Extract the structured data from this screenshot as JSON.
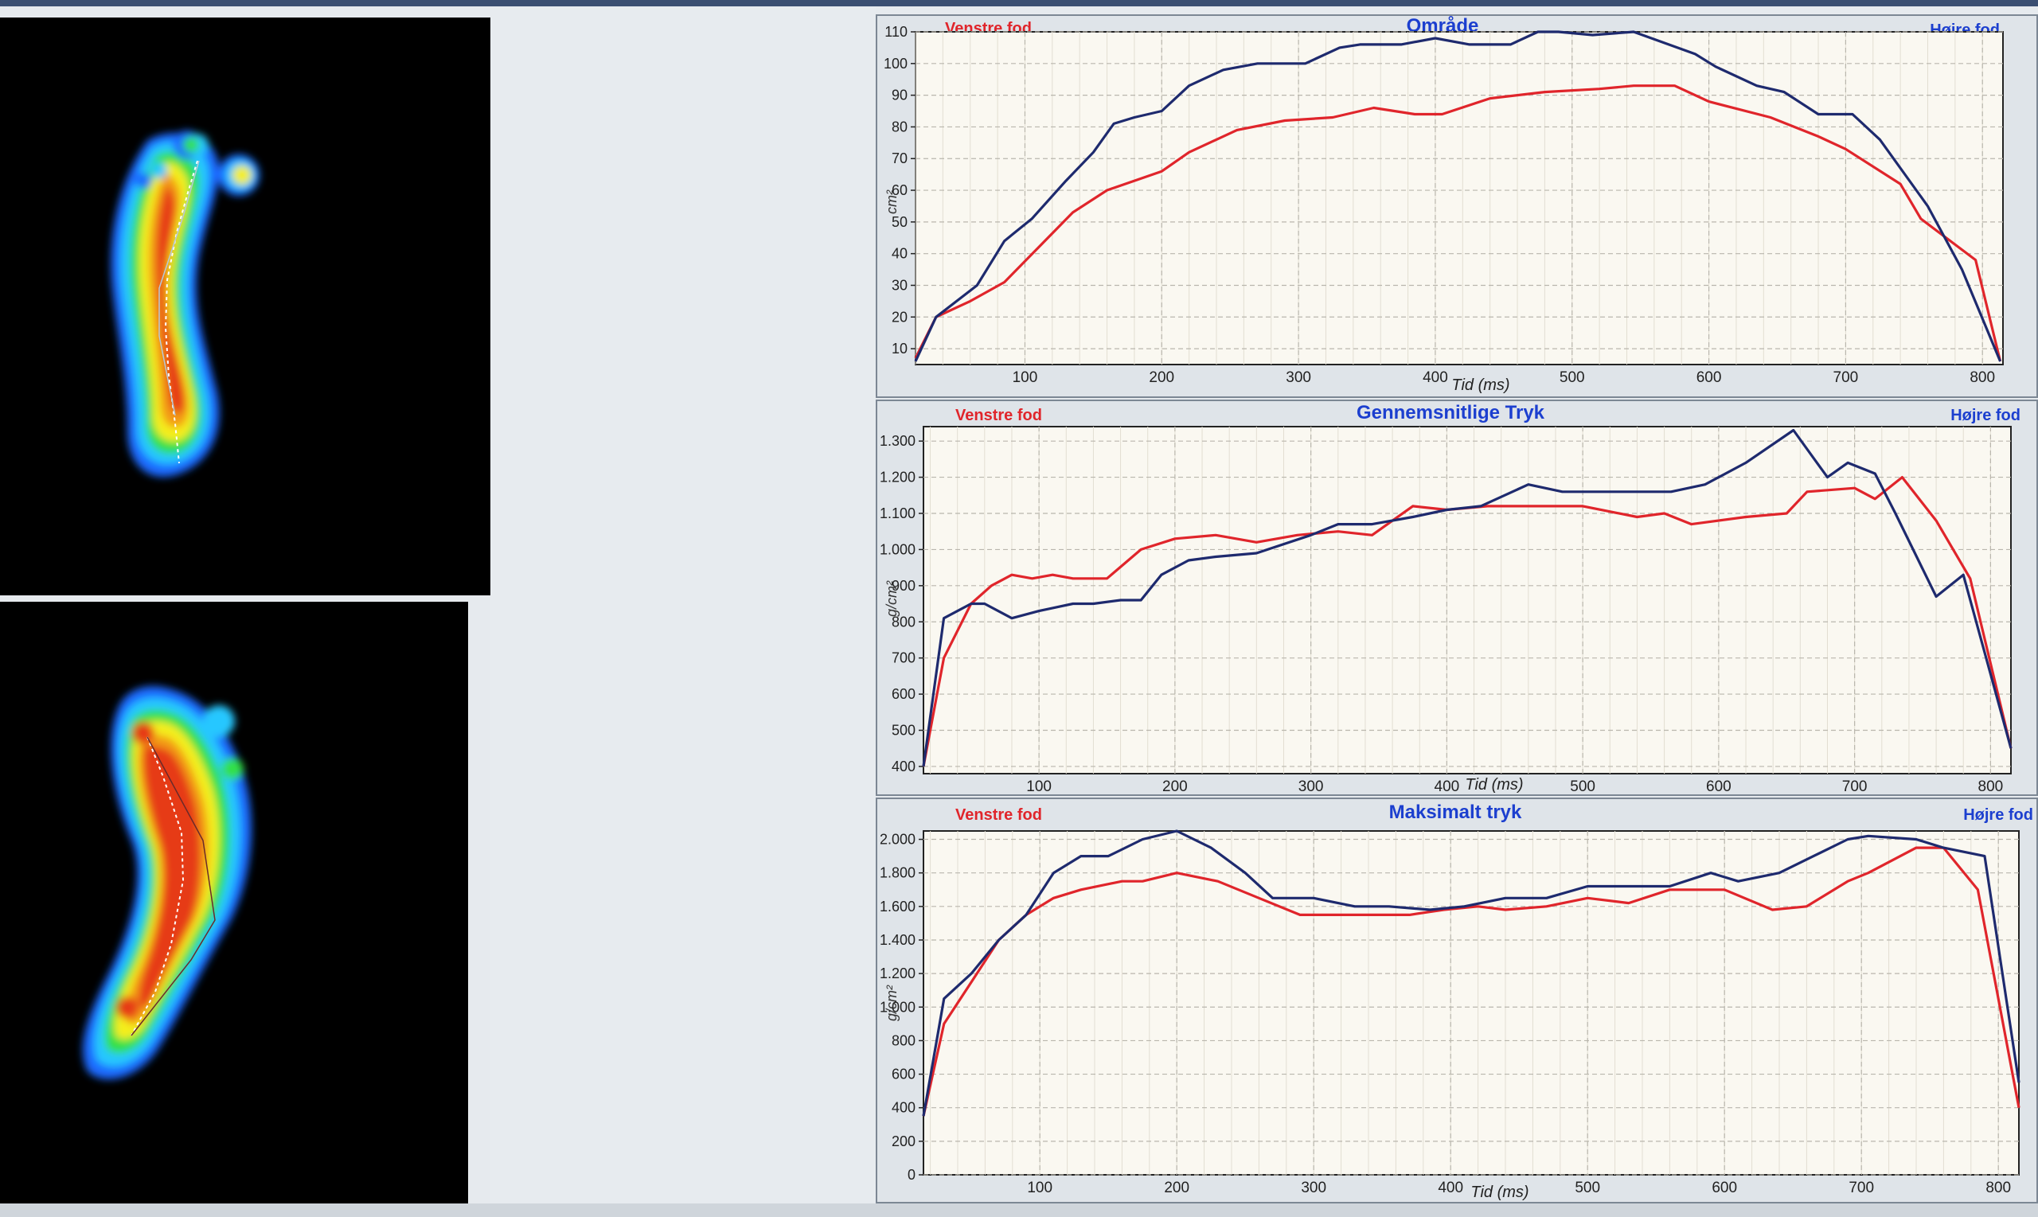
{
  "chart_data": [
    {
      "type": "line",
      "title": "Område",
      "left_label": "Venstre fod",
      "right_label": "Højre fod",
      "xlabel": "Tid (ms)",
      "ylabel": "cm²",
      "xlim": [
        20,
        815
      ],
      "ylim": [
        5,
        110
      ],
      "xticks": [
        100,
        200,
        300,
        400,
        500,
        600,
        700,
        800
      ],
      "yticks": [
        10,
        20,
        30,
        40,
        50,
        60,
        70,
        80,
        90,
        100,
        110
      ],
      "ytick_labels": [
        "10",
        "20",
        "30",
        "40",
        "50",
        "60",
        "70",
        "80",
        "90",
        "100",
        "110"
      ],
      "grid": true,
      "series": [
        {
          "name": "Venstre fod",
          "color": "#e0252b",
          "x": [
            20,
            35,
            60,
            85,
            110,
            135,
            160,
            200,
            220,
            255,
            290,
            325,
            355,
            385,
            405,
            440,
            480,
            520,
            545,
            575,
            600,
            645,
            680,
            700,
            740,
            755,
            795,
            813
          ],
          "y": [
            7,
            20,
            25,
            31,
            42,
            53,
            60,
            66,
            72,
            79,
            82,
            83,
            86,
            84,
            84,
            89,
            91,
            92,
            93,
            93,
            88,
            83,
            77,
            73,
            62,
            51,
            38,
            6
          ]
        },
        {
          "name": "Højre fod",
          "color": "#1e2a6e",
          "x": [
            20,
            35,
            65,
            85,
            105,
            130,
            150,
            165,
            180,
            200,
            220,
            245,
            270,
            305,
            330,
            345,
            375,
            400,
            425,
            455,
            475,
            490,
            515,
            545,
            590,
            605,
            635,
            655,
            680,
            705,
            725,
            760,
            785,
            813
          ],
          "y": [
            6,
            20,
            30,
            44,
            51,
            63,
            72,
            81,
            83,
            85,
            93,
            98,
            100,
            100,
            105,
            106,
            106,
            108,
            106,
            106,
            110,
            110,
            109,
            110,
            103,
            99,
            93,
            91,
            84,
            84,
            76,
            55,
            35,
            6
          ]
        }
      ]
    },
    {
      "type": "line",
      "title": "Gennemsnitlige Tryk",
      "left_label": "Venstre fod",
      "right_label": "Højre fod",
      "xlabel": "Tid (ms)",
      "ylabel": "g/cm²",
      "xlim": [
        15,
        815
      ],
      "ylim": [
        380,
        1340
      ],
      "xticks": [
        100,
        200,
        300,
        400,
        500,
        600,
        700,
        800
      ],
      "yticks": [
        400,
        500,
        600,
        700,
        800,
        900,
        1000,
        1100,
        1200,
        1300
      ],
      "ytick_labels": [
        "400",
        "500",
        "600",
        "700",
        "800",
        "900",
        "1.000",
        "1.100",
        "1.200",
        "1.300"
      ],
      "grid": true,
      "series": [
        {
          "name": "Venstre fod",
          "color": "#e0252b",
          "x": [
            15,
            30,
            50,
            65,
            80,
            95,
            110,
            125,
            150,
            175,
            200,
            230,
            260,
            290,
            320,
            345,
            375,
            400,
            430,
            465,
            500,
            540,
            560,
            580,
            620,
            650,
            665,
            700,
            715,
            735,
            760,
            785,
            815
          ],
          "y": [
            400,
            700,
            850,
            900,
            930,
            920,
            930,
            920,
            920,
            1000,
            1030,
            1040,
            1020,
            1040,
            1050,
            1040,
            1120,
            1110,
            1120,
            1120,
            1120,
            1090,
            1100,
            1070,
            1090,
            1100,
            1160,
            1170,
            1140,
            1200,
            1080,
            920,
            450
          ]
        },
        {
          "name": "Højre fod",
          "color": "#1e2a6e",
          "x": [
            15,
            30,
            50,
            60,
            80,
            100,
            125,
            140,
            160,
            175,
            190,
            210,
            230,
            260,
            300,
            320,
            345,
            375,
            400,
            425,
            460,
            485,
            515,
            565,
            590,
            620,
            655,
            680,
            695,
            715,
            730,
            760,
            780,
            815
          ],
          "y": [
            400,
            810,
            850,
            850,
            810,
            830,
            850,
            850,
            860,
            860,
            930,
            970,
            980,
            990,
            1040,
            1070,
            1070,
            1090,
            1110,
            1120,
            1180,
            1160,
            1160,
            1160,
            1180,
            1240,
            1330,
            1200,
            1240,
            1210,
            1100,
            870,
            930,
            450
          ]
        }
      ]
    },
    {
      "type": "line",
      "title": "Maksimalt tryk",
      "left_label": "Venstre fod",
      "right_label": "Højre fod",
      "xlabel": "Tid (ms)",
      "ylabel": "g/cm²",
      "xlim": [
        15,
        815
      ],
      "ylim": [
        0,
        2050
      ],
      "xticks": [
        100,
        200,
        300,
        400,
        500,
        600,
        700,
        800
      ],
      "yticks": [
        0,
        200,
        400,
        600,
        800,
        1000,
        1200,
        1400,
        1600,
        1800,
        2000
      ],
      "ytick_labels": [
        "0",
        "200",
        "400",
        "600",
        "800",
        "1.000",
        "1.200",
        "1.400",
        "1.600",
        "1.800",
        "2.000"
      ],
      "grid": true,
      "series": [
        {
          "name": "Venstre fod",
          "color": "#e0252b",
          "x": [
            15,
            30,
            50,
            70,
            90,
            110,
            130,
            160,
            175,
            200,
            230,
            260,
            290,
            330,
            370,
            395,
            420,
            440,
            470,
            500,
            530,
            560,
            600,
            635,
            660,
            690,
            705,
            740,
            760,
            785,
            815
          ],
          "y": [
            350,
            900,
            1150,
            1400,
            1550,
            1650,
            1700,
            1750,
            1750,
            1800,
            1750,
            1650,
            1550,
            1550,
            1550,
            1580,
            1600,
            1580,
            1600,
            1650,
            1620,
            1700,
            1700,
            1580,
            1600,
            1750,
            1800,
            1950,
            1950,
            1700,
            400
          ]
        },
        {
          "name": "Højre fod",
          "color": "#1e2a6e",
          "x": [
            15,
            30,
            50,
            70,
            90,
            110,
            130,
            150,
            175,
            200,
            225,
            250,
            270,
            300,
            330,
            355,
            385,
            410,
            440,
            470,
            500,
            530,
            560,
            590,
            610,
            640,
            665,
            690,
            705,
            740,
            760,
            790,
            815
          ],
          "y": [
            350,
            1050,
            1200,
            1400,
            1550,
            1800,
            1900,
            1900,
            2000,
            2050,
            1950,
            1800,
            1650,
            1650,
            1600,
            1600,
            1580,
            1600,
            1650,
            1650,
            1720,
            1720,
            1720,
            1800,
            1750,
            1800,
            1900,
            2000,
            2020,
            2000,
            1950,
            1900,
            550
          ]
        }
      ]
    }
  ]
}
